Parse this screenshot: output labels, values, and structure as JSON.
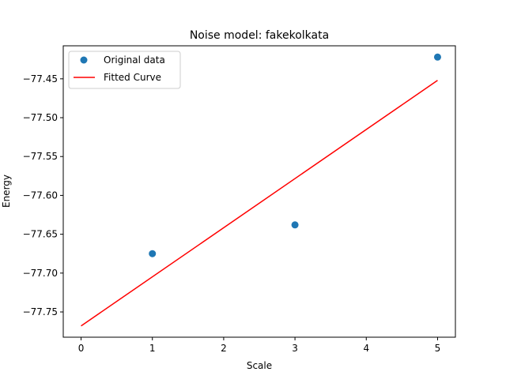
{
  "chart_data": {
    "type": "scatter",
    "title": "Noise model: fakekolkata",
    "xlabel": "Scale",
    "ylabel": "Energy",
    "xlim": [
      -0.25,
      5.25
    ],
    "ylim": [
      -77.7825,
      -77.4075
    ],
    "x_ticks": [
      0,
      1,
      2,
      3,
      4,
      5
    ],
    "x_tick_labels": [
      "0",
      "1",
      "2",
      "3",
      "4",
      "5"
    ],
    "y_ticks": [
      -77.75,
      -77.7,
      -77.65,
      -77.6,
      -77.55,
      -77.5,
      -77.45
    ],
    "y_tick_labels": [
      "−77.75",
      "−77.70",
      "−77.65",
      "−77.60",
      "−77.55",
      "−77.50",
      "−77.45"
    ],
    "grid": false,
    "legend_position": "upper-left",
    "series": [
      {
        "name": "Original data",
        "kind": "scatter",
        "color": "#1f77b4",
        "x": [
          1,
          3,
          5
        ],
        "y": [
          -77.675,
          -77.638,
          -77.422
        ]
      },
      {
        "name": "Fitted Curve",
        "kind": "line",
        "color": "#ff0000",
        "x": [
          0,
          5
        ],
        "y": [
          -77.768,
          -77.452
        ]
      }
    ]
  }
}
